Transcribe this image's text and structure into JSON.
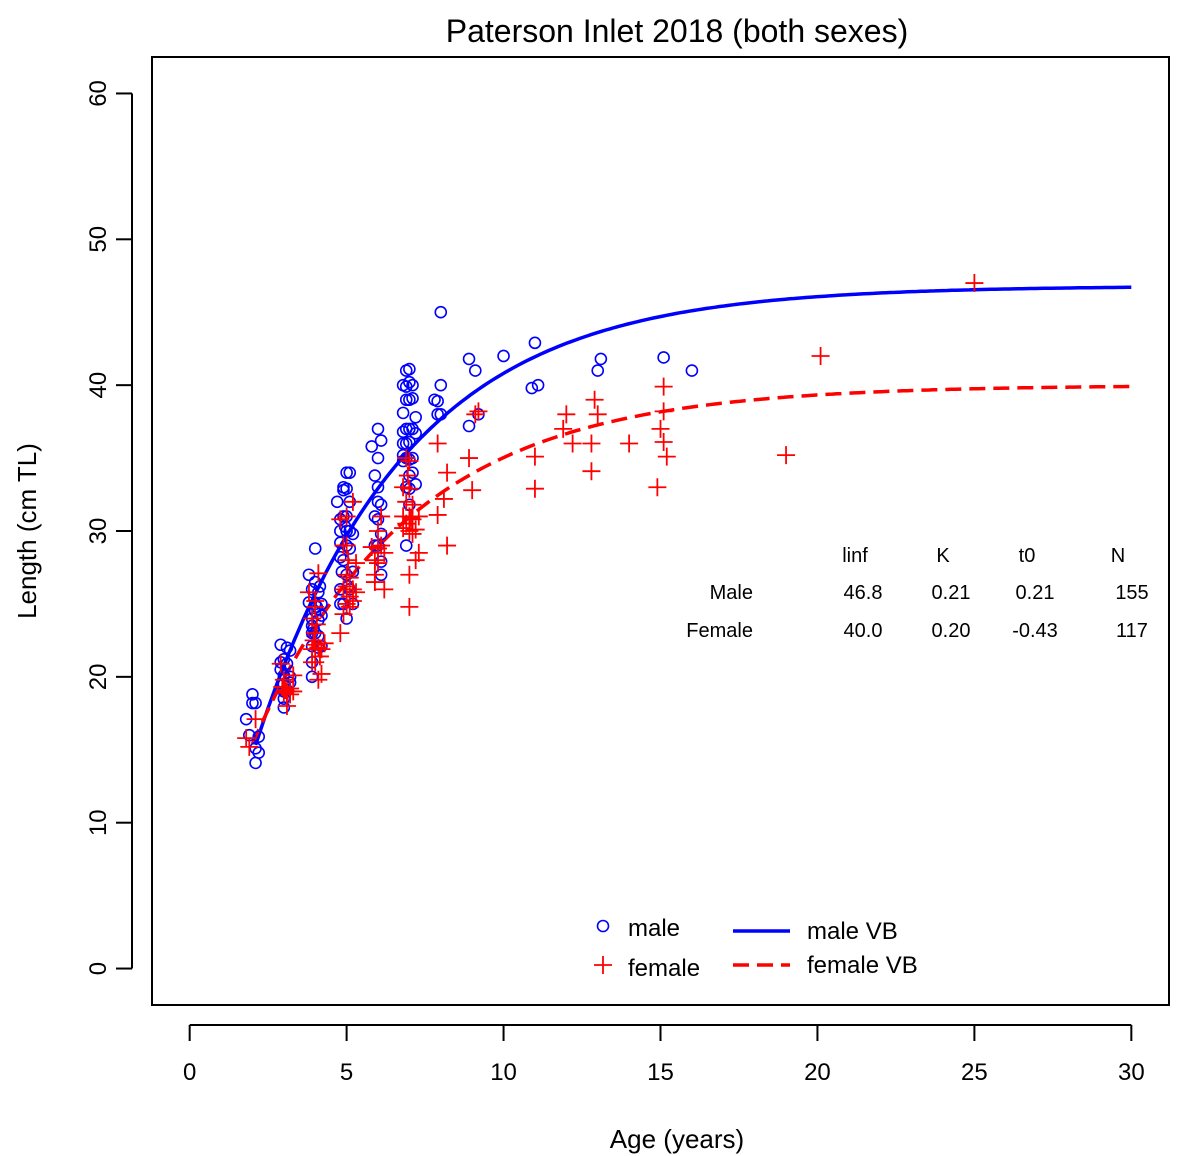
{
  "chart_data": {
    "type": "scatter",
    "title": "Paterson Inlet 2018 (both sexes)",
    "xlabel": "Age (years)",
    "ylabel": "Length (cm TL)",
    "xlim": [
      -1.2,
      31.2
    ],
    "ylim": [
      -2.5,
      62.5
    ],
    "xticks": [
      0,
      5,
      10,
      15,
      20,
      25,
      30
    ],
    "yticks": [
      0,
      10,
      20,
      30,
      40,
      50,
      60
    ],
    "grid": false,
    "legend_position": "bottom-center",
    "colors": {
      "male": "#0000ff",
      "female": "#ff0000"
    },
    "legend": [
      {
        "label": "male",
        "kind": "circle",
        "series": "male"
      },
      {
        "label": "female",
        "kind": "plus",
        "series": "female"
      },
      {
        "label": "male VB",
        "kind": "solid",
        "series": "male"
      },
      {
        "label": "female VB",
        "kind": "dashed",
        "series": "female"
      }
    ],
    "param_table": {
      "headers": [
        "linf",
        "K",
        "t0",
        "N"
      ],
      "rows": [
        {
          "label": "Male",
          "values": [
            "46.8",
            "0.21",
            "0.21",
            "155"
          ]
        },
        {
          "label": "Female",
          "values": [
            "40.0",
            "0.20",
            "-0.43",
            "117"
          ]
        }
      ]
    },
    "curves": [
      {
        "series": "male",
        "style": "solid",
        "linf": 46.8,
        "k": 0.21,
        "t0": 0.21,
        "x_range": [
          2.1,
          30
        ]
      },
      {
        "series": "female",
        "style": "dashed",
        "linf": 40.0,
        "k": 0.2,
        "t0": -0.43,
        "x_range": [
          2.0,
          30
        ]
      }
    ],
    "points": {
      "male": [
        [
          1.8,
          17.1
        ],
        [
          1.9,
          16.0
        ],
        [
          2.0,
          18.2
        ],
        [
          2.0,
          18.8
        ],
        [
          2.1,
          18.2
        ],
        [
          2.1,
          15.1
        ],
        [
          2.1,
          14.1
        ],
        [
          2.2,
          15.9
        ],
        [
          2.2,
          14.8
        ],
        [
          2.9,
          21.0
        ],
        [
          2.9,
          22.2
        ],
        [
          2.9,
          20.5
        ],
        [
          3.0,
          19.5
        ],
        [
          3.0,
          18.5
        ],
        [
          3.0,
          17.9
        ],
        [
          3.0,
          20.1
        ],
        [
          3.0,
          21.2
        ],
        [
          3.0,
          19.0
        ],
        [
          3.1,
          20.9
        ],
        [
          3.1,
          22.0
        ],
        [
          3.2,
          21.8
        ],
        [
          3.2,
          20.0
        ],
        [
          3.2,
          19.6
        ],
        [
          3.1,
          19.1
        ],
        [
          3.8,
          27.0
        ],
        [
          3.8,
          25.1
        ],
        [
          3.9,
          26.0
        ],
        [
          3.9,
          24.0
        ],
        [
          3.9,
          23.5
        ],
        [
          3.9,
          23.0
        ],
        [
          3.9,
          22.1
        ],
        [
          3.9,
          21.0
        ],
        [
          3.9,
          20.0
        ],
        [
          4.0,
          28.8
        ],
        [
          4.0,
          26.5
        ],
        [
          4.0,
          25.0
        ],
        [
          4.0,
          24.5
        ],
        [
          4.0,
          23.0
        ],
        [
          4.1,
          25.8
        ],
        [
          4.1,
          23.9
        ],
        [
          4.1,
          22.8
        ],
        [
          4.1,
          22.0
        ],
        [
          4.2,
          25.0
        ],
        [
          4.2,
          24.2
        ],
        [
          4.2,
          22.1
        ],
        [
          3.95,
          23.3
        ],
        [
          4.05,
          24.8
        ],
        [
          4.15,
          26.2
        ],
        [
          4.7,
          32.0
        ],
        [
          4.8,
          30.0
        ],
        [
          4.8,
          29.2
        ],
        [
          4.8,
          26.0
        ],
        [
          4.8,
          25.0
        ],
        [
          4.8,
          30.8
        ],
        [
          4.8,
          28.2
        ],
        [
          4.9,
          31.0
        ],
        [
          4.9,
          32.8
        ],
        [
          4.9,
          33.0
        ],
        [
          4.9,
          28.0
        ],
        [
          4.9,
          25.0
        ],
        [
          5.0,
          32.9
        ],
        [
          5.0,
          34.0
        ],
        [
          5.0,
          31.0
        ],
        [
          5.0,
          30.0
        ],
        [
          5.0,
          29.0
        ],
        [
          5.0,
          27.0
        ],
        [
          5.0,
          24.0
        ],
        [
          5.1,
          34.0
        ],
        [
          5.1,
          32.0
        ],
        [
          5.1,
          30.0
        ],
        [
          5.1,
          28.8
        ],
        [
          5.1,
          26.0
        ],
        [
          5.2,
          29.8
        ],
        [
          5.2,
          27.2
        ],
        [
          5.2,
          25.0
        ],
        [
          4.85,
          27.2
        ],
        [
          4.95,
          30.3
        ],
        [
          5.05,
          26.2
        ],
        [
          5.8,
          35.8
        ],
        [
          5.9,
          33.8
        ],
        [
          5.9,
          31.0
        ],
        [
          5.9,
          29.0
        ],
        [
          6.0,
          37.0
        ],
        [
          6.0,
          35.0
        ],
        [
          6.0,
          33.0
        ],
        [
          6.0,
          32.0
        ],
        [
          6.0,
          29.0
        ],
        [
          6.1,
          36.2
        ],
        [
          6.1,
          31.8
        ],
        [
          6.1,
          29.8
        ],
        [
          6.1,
          27.9
        ],
        [
          6.1,
          27.0
        ],
        [
          6.0,
          30.8
        ],
        [
          6.8,
          40.0
        ],
        [
          6.8,
          38.1
        ],
        [
          6.8,
          36.8
        ],
        [
          6.8,
          36.0
        ],
        [
          6.8,
          35.2
        ],
        [
          6.8,
          34.8
        ],
        [
          6.9,
          41.0
        ],
        [
          6.9,
          39.9
        ],
        [
          6.9,
          39.0
        ],
        [
          6.9,
          37.0
        ],
        [
          6.9,
          36.0
        ],
        [
          6.9,
          35.0
        ],
        [
          6.9,
          33.0
        ],
        [
          6.9,
          29.0
        ],
        [
          7.0,
          41.1
        ],
        [
          7.0,
          40.2
        ],
        [
          7.0,
          39.0
        ],
        [
          7.0,
          37.0
        ],
        [
          7.0,
          36.1
        ],
        [
          7.0,
          34.9
        ],
        [
          7.0,
          33.8
        ],
        [
          7.0,
          32.9
        ],
        [
          7.1,
          40.0
        ],
        [
          7.1,
          39.1
        ],
        [
          7.1,
          37.0
        ],
        [
          7.1,
          35.0
        ],
        [
          7.1,
          34.0
        ],
        [
          7.2,
          37.8
        ],
        [
          7.2,
          36.7
        ],
        [
          7.2,
          33.2
        ],
        [
          7.0,
          31.8
        ],
        [
          7.8,
          39.0
        ],
        [
          7.9,
          38.0
        ],
        [
          7.9,
          38.9
        ],
        [
          8.0,
          45.0
        ],
        [
          8.0,
          40.0
        ],
        [
          8.0,
          38.0
        ],
        [
          8.9,
          41.8
        ],
        [
          8.9,
          37.2
        ],
        [
          9.1,
          41.0
        ],
        [
          9.2,
          38.0
        ],
        [
          10.0,
          42.0
        ],
        [
          10.9,
          39.8
        ],
        [
          11.0,
          42.9
        ],
        [
          11.1,
          40.0
        ],
        [
          13.0,
          41.0
        ],
        [
          13.1,
          41.8
        ],
        [
          15.1,
          41.9
        ],
        [
          16.0,
          41.0
        ]
      ],
      "female": [
        [
          1.8,
          15.8
        ],
        [
          1.9,
          15.2
        ],
        [
          2.1,
          17.1
        ],
        [
          2.9,
          20.9
        ],
        [
          3.0,
          19.8
        ],
        [
          3.0,
          18.9
        ],
        [
          3.1,
          19.0
        ],
        [
          3.1,
          18.0
        ],
        [
          3.2,
          19.2
        ],
        [
          3.2,
          18.8
        ],
        [
          3.3,
          20.1
        ],
        [
          3.3,
          19.0
        ],
        [
          2.95,
          19.3
        ],
        [
          3.05,
          19.1
        ],
        [
          3.8,
          25.8
        ],
        [
          3.9,
          24.0
        ],
        [
          3.9,
          21.9
        ],
        [
          3.9,
          21.0
        ],
        [
          4.0,
          24.8
        ],
        [
          4.0,
          23.0
        ],
        [
          4.0,
          22.2
        ],
        [
          4.0,
          21.0
        ],
        [
          4.1,
          27.1
        ],
        [
          4.1,
          22.0
        ],
        [
          4.1,
          19.8
        ],
        [
          4.2,
          21.9
        ],
        [
          4.2,
          20.2
        ],
        [
          4.3,
          22.3
        ],
        [
          3.95,
          22.5
        ],
        [
          4.05,
          23.6
        ],
        [
          4.15,
          21.4
        ],
        [
          4.0,
          25.2
        ],
        [
          4.8,
          30.8
        ],
        [
          4.8,
          23.0
        ],
        [
          4.9,
          29.0
        ],
        [
          4.9,
          26.0
        ],
        [
          4.9,
          24.3
        ],
        [
          5.0,
          31.0
        ],
        [
          5.0,
          29.0
        ],
        [
          5.0,
          27.0
        ],
        [
          5.0,
          26.2
        ],
        [
          5.0,
          25.0
        ],
        [
          5.1,
          26.8
        ],
        [
          5.1,
          25.5
        ],
        [
          5.1,
          24.8
        ],
        [
          5.2,
          32.0
        ],
        [
          5.2,
          26.0
        ],
        [
          5.2,
          25.2
        ],
        [
          5.3,
          27.8
        ],
        [
          5.3,
          25.8
        ],
        [
          5.05,
          28.0
        ],
        [
          5.8,
          28.9
        ],
        [
          5.9,
          28.0
        ],
        [
          5.9,
          27.0
        ],
        [
          5.9,
          26.5
        ],
        [
          6.0,
          30.0
        ],
        [
          6.0,
          28.8
        ],
        [
          6.0,
          27.8
        ],
        [
          6.1,
          31.0
        ],
        [
          6.1,
          29.0
        ],
        [
          6.2,
          26.0
        ],
        [
          6.2,
          28.5
        ],
        [
          6.8,
          33.0
        ],
        [
          6.8,
          31.0
        ],
        [
          6.8,
          30.2
        ],
        [
          6.9,
          35.0
        ],
        [
          6.9,
          32.0
        ],
        [
          6.9,
          30.5
        ],
        [
          7.0,
          34.8
        ],
        [
          7.0,
          32.9
        ],
        [
          7.0,
          31.0
        ],
        [
          7.0,
          30.0
        ],
        [
          7.0,
          27.0
        ],
        [
          7.0,
          24.8
        ],
        [
          7.1,
          31.8
        ],
        [
          7.1,
          30.8
        ],
        [
          7.1,
          29.8
        ],
        [
          7.2,
          30.1
        ],
        [
          7.2,
          28.0
        ],
        [
          7.3,
          31.0
        ],
        [
          7.3,
          28.5
        ],
        [
          6.95,
          33.8
        ],
        [
          7.05,
          30.9
        ],
        [
          7.9,
          36.0
        ],
        [
          7.9,
          31.1
        ],
        [
          8.1,
          32.2
        ],
        [
          8.2,
          34.0
        ],
        [
          8.2,
          29.0
        ],
        [
          8.9,
          35.0
        ],
        [
          9.0,
          32.8
        ],
        [
          9.1,
          38.0
        ],
        [
          9.2,
          38.2
        ],
        [
          11.0,
          35.1
        ],
        [
          11.0,
          32.9
        ],
        [
          11.9,
          37.0
        ],
        [
          12.0,
          38.0
        ],
        [
          12.2,
          36.0
        ],
        [
          12.9,
          39.0
        ],
        [
          13.0,
          38.0
        ],
        [
          12.8,
          36.0
        ],
        [
          12.8,
          34.1
        ],
        [
          14.0,
          36.0
        ],
        [
          14.9,
          33.0
        ],
        [
          15.0,
          37.0
        ],
        [
          15.1,
          39.9
        ],
        [
          15.1,
          38.2
        ],
        [
          15.1,
          36.1
        ],
        [
          15.2,
          35.1
        ],
        [
          19.0,
          35.2
        ],
        [
          20.1,
          42.0
        ],
        [
          25.0,
          47.0
        ]
      ]
    }
  }
}
